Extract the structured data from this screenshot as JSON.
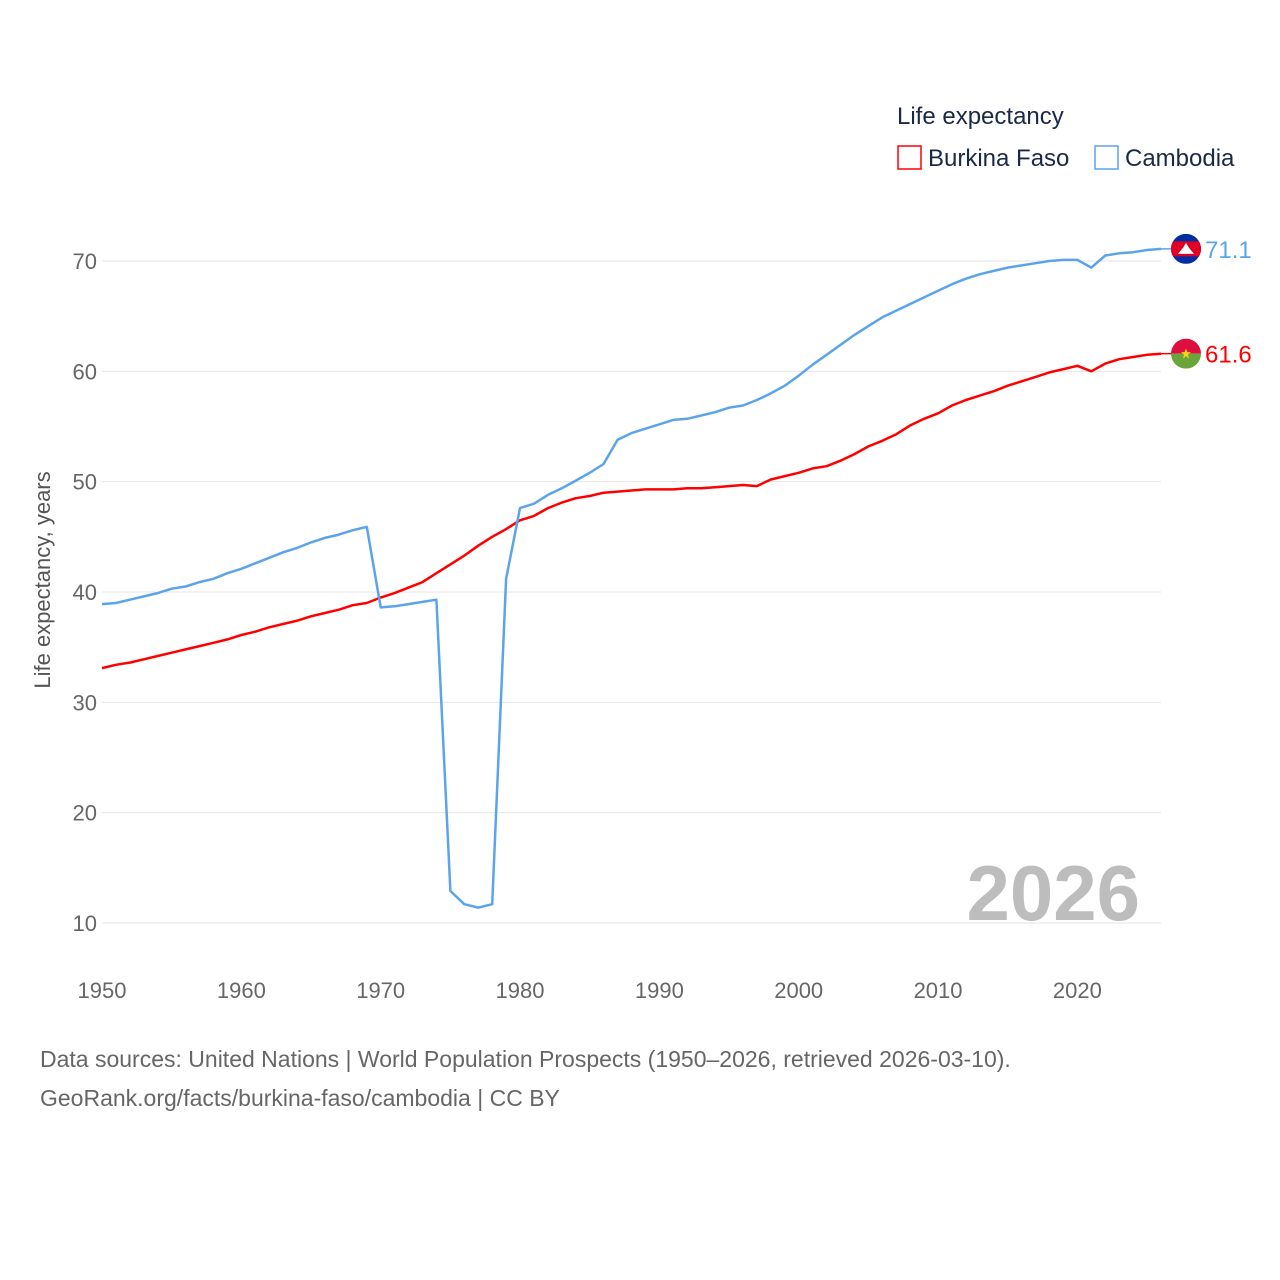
{
  "chart_data": {
    "type": "line",
    "legend_title": "Life expectancy",
    "legend_position": "top-right",
    "ylabel": "Life expectancy, years",
    "xlabel": "",
    "xlim": [
      1950,
      2026
    ],
    "ylim": [
      10,
      70
    ],
    "x_ticks": [
      1950,
      1960,
      1970,
      1980,
      1990,
      2000,
      2010,
      2020
    ],
    "y_ticks": [
      10,
      20,
      30,
      40,
      50,
      60,
      70
    ],
    "grid": true,
    "current_year": "2026",
    "x_start": 1950,
    "series": [
      {
        "name": "Burkina Faso",
        "color": "#ff0000",
        "end_label": "61.6",
        "flag": "burkina-faso-flag",
        "values": [
          33.1,
          33.4,
          33.6,
          33.9,
          34.2,
          34.5,
          34.8,
          35.1,
          35.4,
          35.7,
          36.1,
          36.4,
          36.8,
          37.1,
          37.4,
          37.8,
          38.1,
          38.4,
          38.8,
          39.0,
          39.5,
          39.9,
          40.4,
          40.9,
          41.7,
          42.5,
          43.3,
          44.2,
          45.0,
          45.7,
          46.5,
          46.9,
          47.6,
          48.1,
          48.5,
          48.7,
          49.0,
          49.1,
          49.2,
          49.3,
          49.3,
          49.3,
          49.4,
          49.4,
          49.5,
          49.6,
          49.7,
          49.6,
          50.2,
          50.5,
          50.8,
          51.2,
          51.4,
          51.9,
          52.5,
          53.2,
          53.7,
          54.3,
          55.1,
          55.7,
          56.2,
          56.9,
          57.4,
          57.8,
          58.2,
          58.7,
          59.1,
          59.5,
          59.9,
          60.2,
          60.5,
          60.0,
          60.7,
          61.1,
          61.3,
          61.5,
          61.6
        ]
      },
      {
        "name": "Cambodia",
        "color": "#5ba4ec",
        "end_label": "71.1",
        "flag": "cambodia-flag",
        "values": [
          38.9,
          39.0,
          39.3,
          39.6,
          39.9,
          40.3,
          40.5,
          40.9,
          41.2,
          41.7,
          42.1,
          42.6,
          43.1,
          43.6,
          44.0,
          44.5,
          44.9,
          45.2,
          45.6,
          45.9,
          38.6,
          38.7,
          38.9,
          39.1,
          39.3,
          12.9,
          11.7,
          11.4,
          11.7,
          41.2,
          47.6,
          48.0,
          48.8,
          49.4,
          50.1,
          50.8,
          51.6,
          53.8,
          54.4,
          54.8,
          55.2,
          55.6,
          55.7,
          56.0,
          56.3,
          56.7,
          56.9,
          57.4,
          58.0,
          58.7,
          59.6,
          60.6,
          61.5,
          62.4,
          63.3,
          64.1,
          64.9,
          65.5,
          66.1,
          66.7,
          67.3,
          67.9,
          68.4,
          68.8,
          69.1,
          69.4,
          69.6,
          69.8,
          70.0,
          70.1,
          70.1,
          69.4,
          70.5,
          70.7,
          70.8,
          71.0,
          71.1
        ]
      }
    ]
  },
  "footer": {
    "line1": "Data sources: United Nations | World Population Prospects (1950–2026, retrieved 2026-03-10).",
    "line2": "GeoRank.org/facts/burkina-faso/cambodia | CC BY"
  }
}
